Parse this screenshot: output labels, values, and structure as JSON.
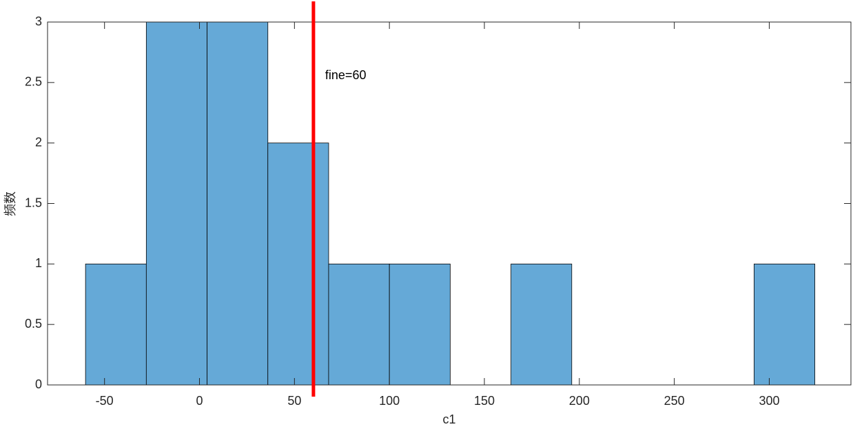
{
  "chart_data": {
    "type": "histogram",
    "bins": [
      -60,
      -28,
      4,
      36,
      68,
      100,
      132,
      164,
      196,
      228,
      260,
      292,
      324
    ],
    "values": [
      1,
      3,
      3,
      2,
      1,
      1,
      0,
      1,
      0,
      0,
      0,
      1
    ],
    "color": "#65a9d7",
    "xlim": [
      -80,
      343
    ],
    "xticks": [
      -50,
      0,
      50,
      100,
      150,
      200,
      250,
      300
    ],
    "ylim": [
      0,
      3
    ],
    "yticks": [
      0,
      0.5,
      1,
      1.5,
      2,
      2.5,
      3
    ],
    "xlabel": "c1",
    "ylabel": "频数",
    "vline": {
      "x": 60,
      "color": "#ff0000",
      "label": "fine=60"
    }
  }
}
